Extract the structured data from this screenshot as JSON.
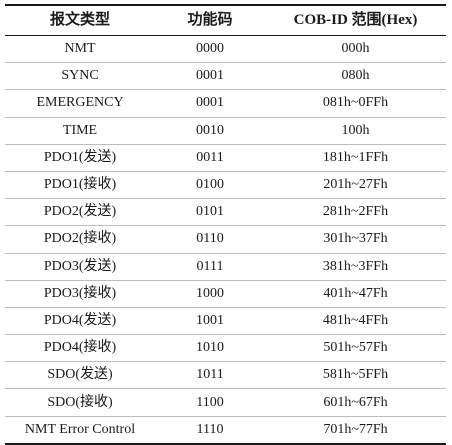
{
  "table": {
    "headers": [
      "报文类型",
      "功能码",
      "COB-ID 范围(Hex)"
    ],
    "rows": [
      [
        "NMT",
        "0000",
        "000h"
      ],
      [
        "SYNC",
        "0001",
        "080h"
      ],
      [
        "EMERGENCY",
        "0001",
        "081h~0FFh"
      ],
      [
        "TIME",
        "0010",
        "100h"
      ],
      [
        "PDO1(发送)",
        "0011",
        "181h~1FFh"
      ],
      [
        "PDO1(接收)",
        "0100",
        "201h~27Fh"
      ],
      [
        "PDO2(发送)",
        "0101",
        "281h~2FFh"
      ],
      [
        "PDO2(接收)",
        "0110",
        "301h~37Fh"
      ],
      [
        "PDO3(发送)",
        "0111",
        "381h~3FFh"
      ],
      [
        "PDO3(接收)",
        "1000",
        "401h~47Fh"
      ],
      [
        "PDO4(发送)",
        "1001",
        "481h~4FFh"
      ],
      [
        "PDO4(接收)",
        "1010",
        "501h~57Fh"
      ],
      [
        "SDO(发送)",
        "1011",
        "581h~5FFh"
      ],
      [
        "SDO(接收)",
        "1100",
        "601h~67Fh"
      ],
      [
        "NMT Error Control",
        "1110",
        "701h~77Fh"
      ]
    ]
  }
}
